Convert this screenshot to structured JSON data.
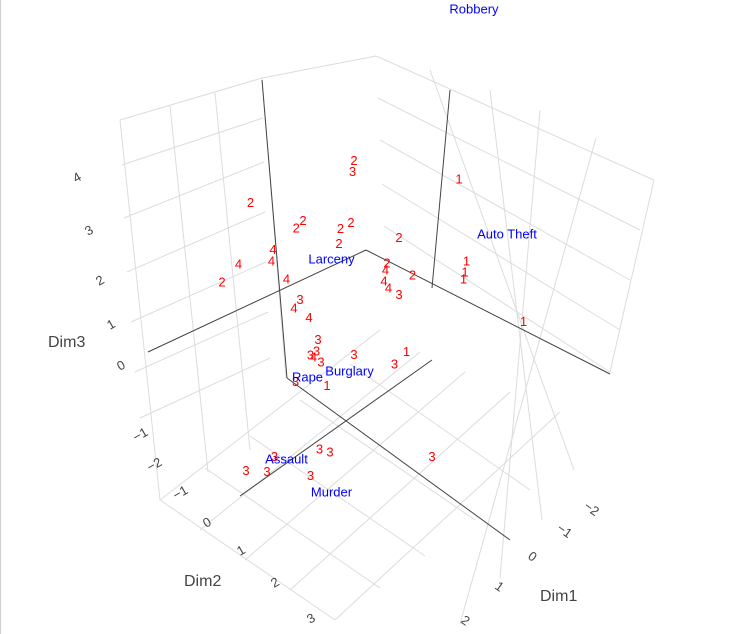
{
  "chart_data": {
    "type": "scatter3d",
    "axes": {
      "x": {
        "title": "Dim1",
        "ticks": [
          "−2",
          "−1",
          "0",
          "1",
          "2"
        ]
      },
      "y": {
        "title": "Dim2",
        "ticks": [
          "−1",
          "0",
          "1",
          "2",
          "3"
        ]
      },
      "z": {
        "title": "Dim3",
        "ticks": [
          "−2",
          "−1",
          "0",
          "1",
          "2",
          "3",
          "4"
        ]
      }
    },
    "grid": true,
    "variables": [
      {
        "label": "Robbery",
        "x": -1.6,
        "y": -2.9,
        "z": 4.2
      },
      {
        "label": "Larceny",
        "x": -0.9,
        "y": 0.0,
        "z": 1.6
      },
      {
        "label": "Auto Theft",
        "x": 0.2,
        "y": -2.1,
        "z": 0.8
      },
      {
        "label": "Rape",
        "x": -0.1,
        "y": 1.0,
        "z": 0.3
      },
      {
        "label": "Burglary",
        "x": 0.3,
        "y": 0.6,
        "z": 0.3
      },
      {
        "label": "Assault",
        "x": 0.9,
        "y": 2.1,
        "z": 0.1
      },
      {
        "label": "Murder",
        "x": 1.5,
        "y": 1.8,
        "z": -0.6
      }
    ],
    "observations": [
      {
        "label": "2",
        "x": -1.9,
        "y": 0.6,
        "z": 2.9
      },
      {
        "label": "2",
        "x": -1.6,
        "y": -0.9,
        "z": 2.6
      },
      {
        "label": "3",
        "x": -1.5,
        "y": -0.8,
        "z": 2.5
      },
      {
        "label": "2",
        "x": -1.4,
        "y": 0.1,
        "z": 2.3
      },
      {
        "label": "2",
        "x": -1.35,
        "y": 0.25,
        "z": 2.3
      },
      {
        "label": "4",
        "x": -1.4,
        "y": 0.6,
        "z": 2.1
      },
      {
        "label": "4",
        "x": -1.3,
        "y": 0.7,
        "z": 2.0
      },
      {
        "label": "4",
        "x": -1.5,
        "y": 1.1,
        "z": 2.2
      },
      {
        "label": "2",
        "x": -1.6,
        "y": 1.3,
        "z": 1.9
      },
      {
        "label": "1",
        "x": -0.6,
        "y": -1.9,
        "z": 1.8
      },
      {
        "label": "2",
        "x": -1.1,
        "y": -0.3,
        "z": 1.9
      },
      {
        "label": "2",
        "x": -1.0,
        "y": -0.4,
        "z": 2.0
      },
      {
        "label": "2",
        "x": -1.0,
        "y": -0.2,
        "z": 1.7
      },
      {
        "label": "2",
        "x": -0.6,
        "y": -0.9,
        "z": 1.4
      },
      {
        "label": "4",
        "x": -1.1,
        "y": 0.6,
        "z": 1.6
      },
      {
        "label": "3",
        "x": -0.8,
        "y": 0.6,
        "z": 1.3
      },
      {
        "label": "4",
        "x": -0.8,
        "y": 0.7,
        "z": 1.2
      },
      {
        "label": "2",
        "x": -0.6,
        "y": -0.7,
        "z": 1.0
      },
      {
        "label": "4",
        "x": -0.5,
        "y": -0.6,
        "z": 1.0
      },
      {
        "label": "4",
        "x": -0.4,
        "y": -0.5,
        "z": 0.9
      },
      {
        "label": "4",
        "x": -0.3,
        "y": -0.5,
        "z": 0.8
      },
      {
        "label": "2",
        "x": -0.3,
        "y": -0.9,
        "z": 0.7
      },
      {
        "label": "3",
        "x": -0.2,
        "y": -0.6,
        "z": 0.6
      },
      {
        "label": "4",
        "x": -0.6,
        "y": 0.6,
        "z": 1.0
      },
      {
        "label": "3",
        "x": -0.4,
        "y": 0.6,
        "z": 0.6
      },
      {
        "label": "3",
        "x": -0.3,
        "y": 0.7,
        "z": 0.5
      },
      {
        "label": "3",
        "x": -0.3,
        "y": 0.8,
        "z": 0.5
      },
      {
        "label": "4",
        "x": -0.3,
        "y": 0.75,
        "z": 0.4
      },
      {
        "label": "3",
        "x": -0.2,
        "y": 0.7,
        "z": 0.3
      },
      {
        "label": "1",
        "x": 0.1,
        "y": -1.5,
        "z": 0.7
      },
      {
        "label": "1",
        "x": 0.2,
        "y": -1.4,
        "z": 0.6
      },
      {
        "label": "1",
        "x": 0.3,
        "y": -1.3,
        "z": 0.6
      },
      {
        "label": "3",
        "x": 0.0,
        "y": 0.3,
        "z": 0.2
      },
      {
        "label": "3",
        "x": -0.1,
        "y": 1.2,
        "z": 0.4
      },
      {
        "label": "1",
        "x": 0.2,
        "y": 0.9,
        "z": 0.2
      },
      {
        "label": "1",
        "x": 0.5,
        "y": -0.2,
        "z": 0.1
      },
      {
        "label": "3",
        "x": 0.5,
        "y": 0.0,
        "z": 0.0
      },
      {
        "label": "1",
        "x": 1.1,
        "y": -1.7,
        "z": -0.3
      },
      {
        "label": "3",
        "x": 0.7,
        "y": 1.4,
        "z": -0.5
      },
      {
        "label": "3",
        "x": 0.8,
        "y": 1.3,
        "z": -0.6
      },
      {
        "label": "3",
        "x": 0.5,
        "y": 2.0,
        "z": -0.2
      },
      {
        "label": "3",
        "x": 0.6,
        "y": 2.2,
        "z": -0.3
      },
      {
        "label": "3",
        "x": 0.4,
        "y": 2.4,
        "z": -0.2
      },
      {
        "label": "3",
        "x": 0.9,
        "y": 1.7,
        "z": -0.7
      },
      {
        "label": "3",
        "x": 1.6,
        "y": 0.2,
        "z": -1.3
      }
    ]
  }
}
